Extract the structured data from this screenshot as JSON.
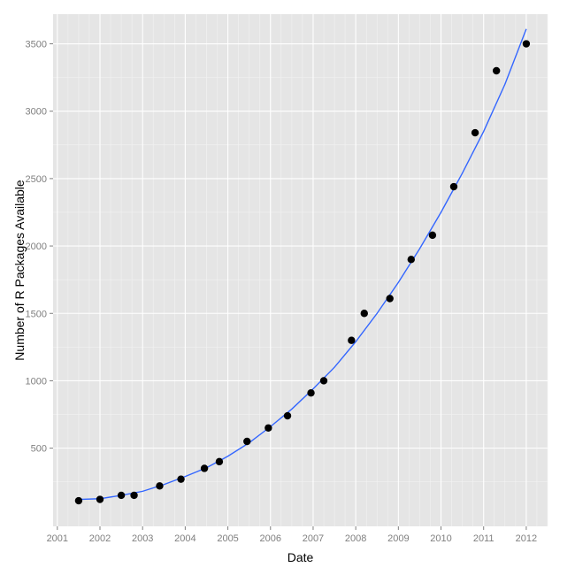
{
  "chart_data": {
    "type": "scatter",
    "title": "",
    "xlabel": "Date",
    "ylabel": "Number of R Packages Available",
    "x_ticks": [
      "2001",
      "2002",
      "2003",
      "2004",
      "2005",
      "2006",
      "2007",
      "2008",
      "2009",
      "2010",
      "2011",
      "2012"
    ],
    "y_ticks": [
      "500",
      "1000",
      "1500",
      "2000",
      "2500",
      "3000",
      "3500"
    ],
    "xlim": [
      2000.9,
      2012.5
    ],
    "ylim": [
      -80,
      3720
    ],
    "grid": true,
    "legend": "none",
    "points": {
      "x": [
        2001.5,
        2002.0,
        2002.5,
        2002.8,
        2003.4,
        2003.9,
        2004.45,
        2004.8,
        2005.45,
        2005.95,
        2006.4,
        2006.95,
        2007.25,
        2007.9,
        2008.2,
        2008.8,
        2009.3,
        2009.8,
        2010.3,
        2010.8,
        2011.3,
        2012.0
      ],
      "y": [
        110,
        120,
        150,
        150,
        220,
        270,
        350,
        400,
        550,
        650,
        740,
        910,
        1000,
        1300,
        1500,
        1610,
        1900,
        2080,
        2440,
        2840,
        3300,
        3500
      ]
    },
    "trend": {
      "name": "",
      "x": [
        2001.5,
        2002.0,
        2002.5,
        2003.0,
        2003.5,
        2004.0,
        2004.5,
        2005.0,
        2005.5,
        2006.0,
        2006.5,
        2007.0,
        2007.5,
        2008.0,
        2008.5,
        2009.0,
        2009.5,
        2010.0,
        2010.5,
        2011.0,
        2011.5,
        2012.0
      ],
      "y": [
        120,
        125,
        150,
        180,
        230,
        290,
        355,
        440,
        540,
        660,
        790,
        940,
        1100,
        1290,
        1500,
        1730,
        1980,
        2250,
        2540,
        2850,
        3200,
        3610
      ]
    },
    "colors": {
      "panel": "#e5e5e5",
      "grid_major": "#ffffff",
      "grid_minor": "#f2f2f2",
      "point": "#000000",
      "trend": "#3366ff",
      "tick_label": "#7f7f7f",
      "axis_title": "#000000"
    }
  }
}
